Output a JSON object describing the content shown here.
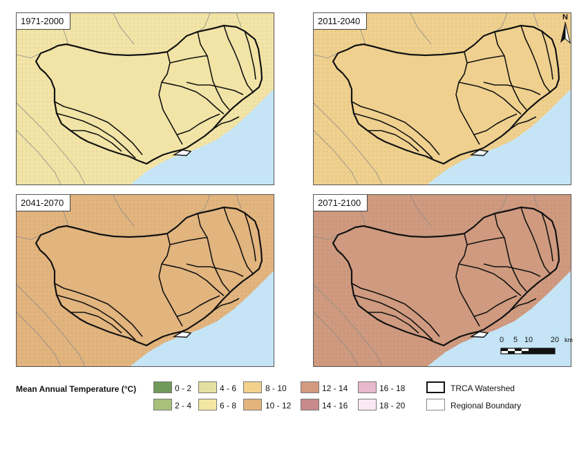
{
  "panels": [
    {
      "label": "1971-2000",
      "fill": "#f2e4a6"
    },
    {
      "label": "2011-2040",
      "fill": "#efd08e"
    },
    {
      "label": "2041-2070",
      "fill": "#e2b47e"
    },
    {
      "label": "2071-2100",
      "fill": "#cf9a7f"
    }
  ],
  "water_color": "#c5e5f7",
  "legend": {
    "title": "Mean Annual Temperature (°C)",
    "classes": [
      {
        "label": "0 - 2",
        "color": "#6f9a5a"
      },
      {
        "label": "2 - 4",
        "color": "#a7c17c"
      },
      {
        "label": "4 - 6",
        "color": "#e4e0a0"
      },
      {
        "label": "6 - 8",
        "color": "#f4e7a5"
      },
      {
        "label": "8 - 10",
        "color": "#f2d18d"
      },
      {
        "label": "10 - 12",
        "color": "#e4b47d"
      },
      {
        "label": "12 - 14",
        "color": "#d39a80"
      },
      {
        "label": "14 - 16",
        "color": "#c88a8a"
      },
      {
        "label": "16 - 18",
        "color": "#e8b9cd"
      },
      {
        "label": "18 - 20",
        "color": "#fbeaf6"
      }
    ],
    "boundary_items": [
      {
        "label": "TRCA Watershed"
      },
      {
        "label": "Regional Boundary"
      }
    ]
  },
  "north_arrow": {
    "label": "N"
  },
  "scale_bar": {
    "ticks": [
      "0",
      "5",
      "10",
      "20"
    ],
    "unit": "km"
  }
}
